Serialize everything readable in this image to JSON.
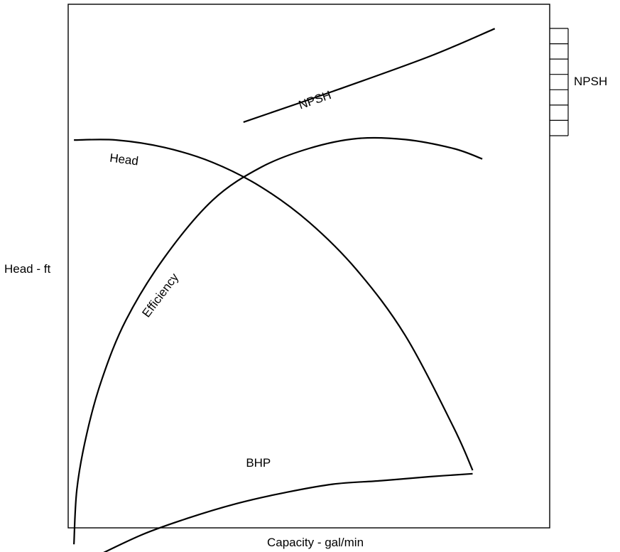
{
  "chart_data": {
    "type": "line",
    "title": "",
    "xlabel": "Capacity - gal/min",
    "ylabel": "Head - ft",
    "right_axis_label": "NPSH",
    "x_ticks": [],
    "y_ticks": [],
    "right_axis_ticks": 7,
    "xlim": [
      0,
      100
    ],
    "ylim": [
      0,
      100
    ],
    "grid": false,
    "legend": "none",
    "line_color": "#000000",
    "series": [
      {
        "name": "NPSH",
        "points": [
          [
            36.4,
            76.3
          ],
          [
            55,
            82.5
          ],
          [
            75,
            89.5
          ],
          [
            88.6,
            95.1
          ]
        ]
      },
      {
        "name": "Head",
        "points": [
          [
            1.2,
            72.7
          ],
          [
            10,
            72.7
          ],
          [
            20,
            71.2
          ],
          [
            30,
            68.2
          ],
          [
            40,
            63.3
          ],
          [
            50,
            56.2
          ],
          [
            60,
            46.5
          ],
          [
            70,
            33.4
          ],
          [
            80,
            15.0
          ],
          [
            84,
            6.3
          ]
        ]
      },
      {
        "name": "Efficiency",
        "points": [
          [
            1.2,
            -8.6
          ],
          [
            1.8,
            2.4
          ],
          [
            3.8,
            13.4
          ],
          [
            7,
            24.6
          ],
          [
            12,
            36.5
          ],
          [
            20,
            49.1
          ],
          [
            30,
            60.6
          ],
          [
            40,
            67.2
          ],
          [
            50,
            71.0
          ],
          [
            60,
            73.0
          ],
          [
            70,
            72.8
          ],
          [
            80,
            71.0
          ],
          [
            86,
            68.9
          ]
        ]
      },
      {
        "name": "BHP",
        "points": [
          [
            3.3,
            -12.2
          ],
          [
            15,
            -6.8
          ],
          [
            25,
            -3.3
          ],
          [
            35,
            -0.4
          ],
          [
            45,
            1.8
          ],
          [
            55,
            3.5
          ],
          [
            65,
            4.2
          ],
          [
            75,
            5.0
          ],
          [
            84,
            5.6
          ]
        ]
      }
    ],
    "annotations": [
      {
        "text": "NPSH",
        "x": 51.5,
        "y": 80,
        "rotation": -19
      },
      {
        "text": "Head",
        "x": 11.5,
        "y": 68,
        "rotation": 7
      },
      {
        "text": "Efficiency",
        "x": 19.8,
        "y": 41,
        "rotation": -53
      },
      {
        "text": "BHP",
        "x": 39.5,
        "y": 7,
        "rotation": 0
      }
    ]
  }
}
